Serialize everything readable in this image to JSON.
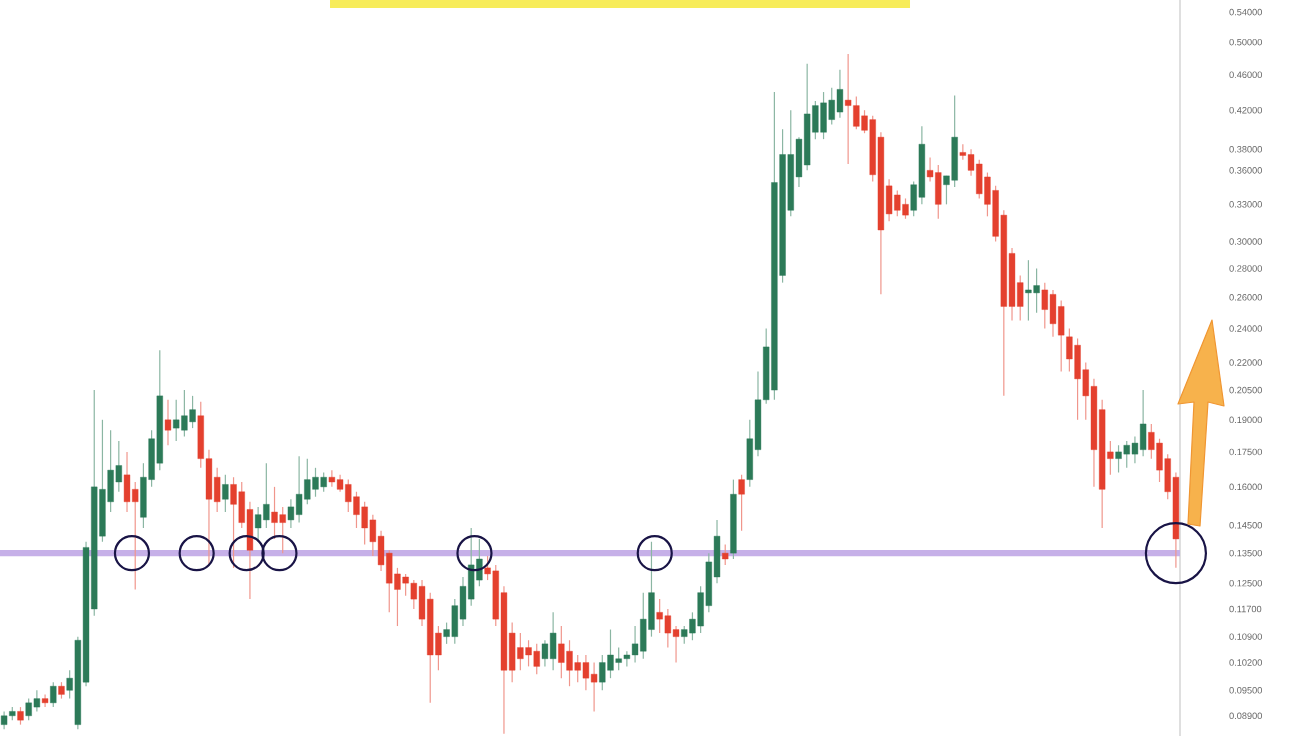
{
  "chart_data": {
    "type": "candlestick",
    "log": "y",
    "tick_labels": "y",
    "categories": [
      null,
      null,
      null,
      null,
      null,
      null,
      null,
      null,
      null,
      null,
      null,
      null,
      null,
      null,
      null,
      null,
      null,
      null,
      null,
      null,
      null,
      null,
      null,
      null,
      null,
      null,
      null,
      null,
      null,
      null,
      null,
      null,
      null,
      null,
      null,
      null,
      null,
      null,
      null,
      null,
      null,
      null,
      null,
      null,
      null,
      null,
      null,
      null,
      null,
      null,
      null,
      null,
      null,
      null,
      null,
      null,
      null,
      null,
      null,
      null,
      null,
      null,
      null,
      null,
      null,
      null,
      null,
      null,
      null,
      null,
      null,
      null,
      null,
      null,
      null,
      null,
      null,
      null,
      null,
      null,
      null,
      null,
      null,
      null,
      null,
      null,
      null,
      null,
      null,
      null,
      null,
      null,
      null,
      null,
      null,
      null,
      null,
      null,
      null,
      null,
      null,
      null,
      null,
      null,
      null,
      null,
      null,
      null,
      null,
      null,
      null,
      null,
      null,
      null,
      null,
      null,
      null,
      null,
      null,
      null,
      null,
      null,
      null,
      null,
      null,
      null,
      null,
      null,
      null,
      null,
      null,
      null,
      null,
      null,
      null,
      null,
      null,
      null,
      null,
      null,
      null,
      null,
      null,
      null
    ],
    "ohlc": [
      [
        0.087,
        0.09,
        0.086,
        0.089
      ],
      [
        0.089,
        0.091,
        0.088,
        0.09
      ],
      [
        0.09,
        0.091,
        0.087,
        0.088
      ],
      [
        0.089,
        0.093,
        0.088,
        0.092
      ],
      [
        0.091,
        0.095,
        0.09,
        0.093
      ],
      [
        0.093,
        0.094,
        0.091,
        0.092
      ],
      [
        0.092,
        0.097,
        0.091,
        0.096
      ],
      [
        0.096,
        0.097,
        0.093,
        0.094
      ],
      [
        0.095,
        0.1,
        0.093,
        0.098
      ],
      [
        0.087,
        0.109,
        0.086,
        0.108
      ],
      [
        0.097,
        0.139,
        0.096,
        0.137
      ],
      [
        0.117,
        0.205,
        0.115,
        0.16
      ],
      [
        0.141,
        0.19,
        0.139,
        0.159
      ],
      [
        0.154,
        0.185,
        0.15,
        0.167
      ],
      [
        0.162,
        0.18,
        0.158,
        0.169
      ],
      [
        0.165,
        0.175,
        0.15,
        0.154
      ],
      [
        0.159,
        0.162,
        0.123,
        0.154
      ],
      [
        0.148,
        0.17,
        0.144,
        0.164
      ],
      [
        0.163,
        0.185,
        0.16,
        0.181
      ],
      [
        0.17,
        0.227,
        0.167,
        0.202
      ],
      [
        0.19,
        0.2,
        0.178,
        0.185
      ],
      [
        0.186,
        0.2,
        0.18,
        0.19
      ],
      [
        0.185,
        0.205,
        0.182,
        0.192
      ],
      [
        0.189,
        0.202,
        0.186,
        0.195
      ],
      [
        0.192,
        0.199,
        0.168,
        0.172
      ],
      [
        0.172,
        0.176,
        0.131,
        0.155
      ],
      [
        0.164,
        0.168,
        0.15,
        0.154
      ],
      [
        0.155,
        0.165,
        0.15,
        0.161
      ],
      [
        0.161,
        0.164,
        0.13,
        0.153
      ],
      [
        0.158,
        0.162,
        0.144,
        0.146
      ],
      [
        0.151,
        0.154,
        0.12,
        0.136
      ],
      [
        0.144,
        0.152,
        0.139,
        0.149
      ],
      [
        0.147,
        0.17,
        0.144,
        0.153
      ],
      [
        0.15,
        0.16,
        0.14,
        0.146
      ],
      [
        0.149,
        0.152,
        0.135,
        0.146
      ],
      [
        0.147,
        0.155,
        0.144,
        0.152
      ],
      [
        0.149,
        0.173,
        0.146,
        0.157
      ],
      [
        0.155,
        0.172,
        0.153,
        0.163
      ],
      [
        0.159,
        0.168,
        0.156,
        0.164
      ],
      [
        0.16,
        0.166,
        0.158,
        0.164
      ],
      [
        0.164,
        0.167,
        0.16,
        0.162
      ],
      [
        0.163,
        0.165,
        0.158,
        0.159
      ],
      [
        0.161,
        0.163,
        0.15,
        0.154
      ],
      [
        0.156,
        0.158,
        0.144,
        0.149
      ],
      [
        0.152,
        0.154,
        0.138,
        0.144
      ],
      [
        0.147,
        0.149,
        0.134,
        0.139
      ],
      [
        0.141,
        0.143,
        0.129,
        0.131
      ],
      [
        0.135,
        0.136,
        0.116,
        0.125
      ],
      [
        0.128,
        0.13,
        0.112,
        0.123
      ],
      [
        0.127,
        0.128,
        0.121,
        0.125
      ],
      [
        0.125,
        0.126,
        0.117,
        0.12
      ],
      [
        0.124,
        0.126,
        0.112,
        0.114
      ],
      [
        0.12,
        0.122,
        0.092,
        0.104
      ],
      [
        0.11,
        0.112,
        0.1,
        0.104
      ],
      [
        0.109,
        0.113,
        0.107,
        0.111
      ],
      [
        0.109,
        0.12,
        0.107,
        0.118
      ],
      [
        0.114,
        0.127,
        0.112,
        0.124
      ],
      [
        0.12,
        0.144,
        0.118,
        0.131
      ],
      [
        0.126,
        0.14,
        0.124,
        0.133
      ],
      [
        0.13,
        0.134,
        0.126,
        0.128
      ],
      [
        0.129,
        0.131,
        0.112,
        0.114
      ],
      [
        0.122,
        0.124,
        0.085,
        0.1
      ],
      [
        0.11,
        0.113,
        0.097,
        0.1
      ],
      [
        0.106,
        0.11,
        0.1,
        0.103
      ],
      [
        0.106,
        0.108,
        0.101,
        0.104
      ],
      [
        0.105,
        0.107,
        0.099,
        0.101
      ],
      [
        0.103,
        0.108,
        0.101,
        0.107
      ],
      [
        0.103,
        0.116,
        0.1,
        0.11
      ],
      [
        0.107,
        0.112,
        0.098,
        0.102
      ],
      [
        0.105,
        0.108,
        0.096,
        0.1
      ],
      [
        0.102,
        0.104,
        0.097,
        0.1
      ],
      [
        0.102,
        0.104,
        0.095,
        0.098
      ],
      [
        0.099,
        0.102,
        0.09,
        0.097
      ],
      [
        0.097,
        0.104,
        0.095,
        0.102
      ],
      [
        0.1,
        0.111,
        0.098,
        0.104
      ],
      [
        0.102,
        0.106,
        0.1,
        0.103
      ],
      [
        0.103,
        0.105,
        0.101,
        0.104
      ],
      [
        0.104,
        0.112,
        0.102,
        0.107
      ],
      [
        0.105,
        0.122,
        0.103,
        0.114
      ],
      [
        0.111,
        0.139,
        0.109,
        0.122
      ],
      [
        0.116,
        0.12,
        0.11,
        0.114
      ],
      [
        0.115,
        0.117,
        0.106,
        0.11
      ],
      [
        0.111,
        0.112,
        0.102,
        0.109
      ],
      [
        0.109,
        0.112,
        0.107,
        0.111
      ],
      [
        0.11,
        0.116,
        0.108,
        0.114
      ],
      [
        0.112,
        0.124,
        0.11,
        0.122
      ],
      [
        0.118,
        0.135,
        0.116,
        0.132
      ],
      [
        0.127,
        0.147,
        0.125,
        0.141
      ],
      [
        0.135,
        0.138,
        0.131,
        0.133
      ],
      [
        0.135,
        0.163,
        0.133,
        0.157
      ],
      [
        0.163,
        0.165,
        0.143,
        0.157
      ],
      [
        0.163,
        0.19,
        0.16,
        0.181
      ],
      [
        0.176,
        0.215,
        0.173,
        0.2
      ],
      [
        0.2,
        0.24,
        0.198,
        0.229
      ],
      [
        0.205,
        0.44,
        0.2,
        0.349
      ],
      [
        0.275,
        0.4,
        0.27,
        0.375
      ],
      [
        0.325,
        0.42,
        0.32,
        0.375
      ],
      [
        0.354,
        0.392,
        0.345,
        0.39
      ],
      [
        0.365,
        0.473,
        0.36,
        0.416
      ],
      [
        0.397,
        0.43,
        0.39,
        0.425
      ],
      [
        0.397,
        0.44,
        0.39,
        0.428
      ],
      [
        0.41,
        0.445,
        0.405,
        0.431
      ],
      [
        0.418,
        0.466,
        0.412,
        0.443
      ],
      [
        0.431,
        0.485,
        0.366,
        0.425
      ],
      [
        0.425,
        0.435,
        0.4,
        0.403
      ],
      [
        0.414,
        0.42,
        0.396,
        0.399
      ],
      [
        0.41,
        0.414,
        0.35,
        0.356
      ],
      [
        0.392,
        0.397,
        0.262,
        0.309
      ],
      [
        0.346,
        0.352,
        0.316,
        0.322
      ],
      [
        0.338,
        0.342,
        0.32,
        0.325
      ],
      [
        0.33,
        0.335,
        0.318,
        0.321
      ],
      [
        0.325,
        0.35,
        0.32,
        0.347
      ],
      [
        0.336,
        0.403,
        0.33,
        0.385
      ],
      [
        0.36,
        0.372,
        0.35,
        0.354
      ],
      [
        0.358,
        0.365,
        0.318,
        0.33
      ],
      [
        0.347,
        0.355,
        0.33,
        0.355
      ],
      [
        0.351,
        0.436,
        0.345,
        0.392
      ],
      [
        0.377,
        0.385,
        0.37,
        0.374
      ],
      [
        0.375,
        0.38,
        0.355,
        0.36
      ],
      [
        0.366,
        0.37,
        0.335,
        0.339
      ],
      [
        0.354,
        0.358,
        0.32,
        0.33
      ],
      [
        0.342,
        0.346,
        0.3,
        0.304
      ],
      [
        0.321,
        0.325,
        0.202,
        0.254
      ],
      [
        0.291,
        0.295,
        0.245,
        0.254
      ],
      [
        0.27,
        0.275,
        0.245,
        0.254
      ],
      [
        0.263,
        0.286,
        0.245,
        0.265
      ],
      [
        0.263,
        0.28,
        0.25,
        0.268
      ],
      [
        0.265,
        0.27,
        0.24,
        0.252
      ],
      [
        0.262,
        0.265,
        0.235,
        0.243
      ],
      [
        0.254,
        0.258,
        0.215,
        0.236
      ],
      [
        0.235,
        0.24,
        0.215,
        0.222
      ],
      [
        0.23,
        0.234,
        0.19,
        0.211
      ],
      [
        0.216,
        0.22,
        0.19,
        0.202
      ],
      [
        0.207,
        0.211,
        0.16,
        0.176
      ],
      [
        0.195,
        0.2,
        0.144,
        0.159
      ],
      [
        0.175,
        0.18,
        0.165,
        0.172
      ],
      [
        0.172,
        0.178,
        0.166,
        0.175
      ],
      [
        0.174,
        0.18,
        0.168,
        0.178
      ],
      [
        0.174,
        0.182,
        0.17,
        0.179
      ],
      [
        0.176,
        0.205,
        0.173,
        0.188
      ],
      [
        0.184,
        0.188,
        0.172,
        0.176
      ],
      [
        0.179,
        0.181,
        0.162,
        0.167
      ],
      [
        0.172,
        0.174,
        0.155,
        0.158
      ],
      [
        0.164,
        0.166,
        0.13,
        0.14
      ]
    ],
    "ylim": [
      0.0845,
      0.557
    ],
    "yticks": [
      {
        "value": 0.54,
        "label": "0.54000"
      },
      {
        "value": 0.5,
        "label": "0.50000"
      },
      {
        "value": 0.46,
        "label": "0.46000"
      },
      {
        "value": 0.42,
        "label": "0.42000"
      },
      {
        "value": 0.38,
        "label": "0.38000"
      },
      {
        "value": 0.36,
        "label": "0.36000"
      },
      {
        "value": 0.33,
        "label": "0.33000"
      },
      {
        "value": 0.3,
        "label": "0.30000"
      },
      {
        "value": 0.28,
        "label": "0.28000"
      },
      {
        "value": 0.26,
        "label": "0.26000"
      },
      {
        "value": 0.24,
        "label": "0.24000"
      },
      {
        "value": 0.22,
        "label": "0.22000"
      },
      {
        "value": 0.205,
        "label": "0.20500"
      },
      {
        "value": 0.19,
        "label": "0.19000"
      },
      {
        "value": 0.175,
        "label": "0.17500"
      },
      {
        "value": 0.16,
        "label": "0.16000"
      },
      {
        "value": 0.145,
        "label": "0.14500"
      },
      {
        "value": 0.135,
        "label": "0.13500"
      },
      {
        "value": 0.125,
        "label": "0.12500"
      },
      {
        "value": 0.117,
        "label": "0.11700"
      },
      {
        "value": 0.109,
        "label": "0.10900"
      },
      {
        "value": 0.102,
        "label": "0.10200"
      },
      {
        "value": 0.095,
        "label": "0.09500"
      },
      {
        "value": 0.089,
        "label": "0.08900"
      }
    ],
    "ref_lines": [
      {
        "axis": "y",
        "value": 0.135,
        "color": "#c6b0e8"
      }
    ]
  }
}
